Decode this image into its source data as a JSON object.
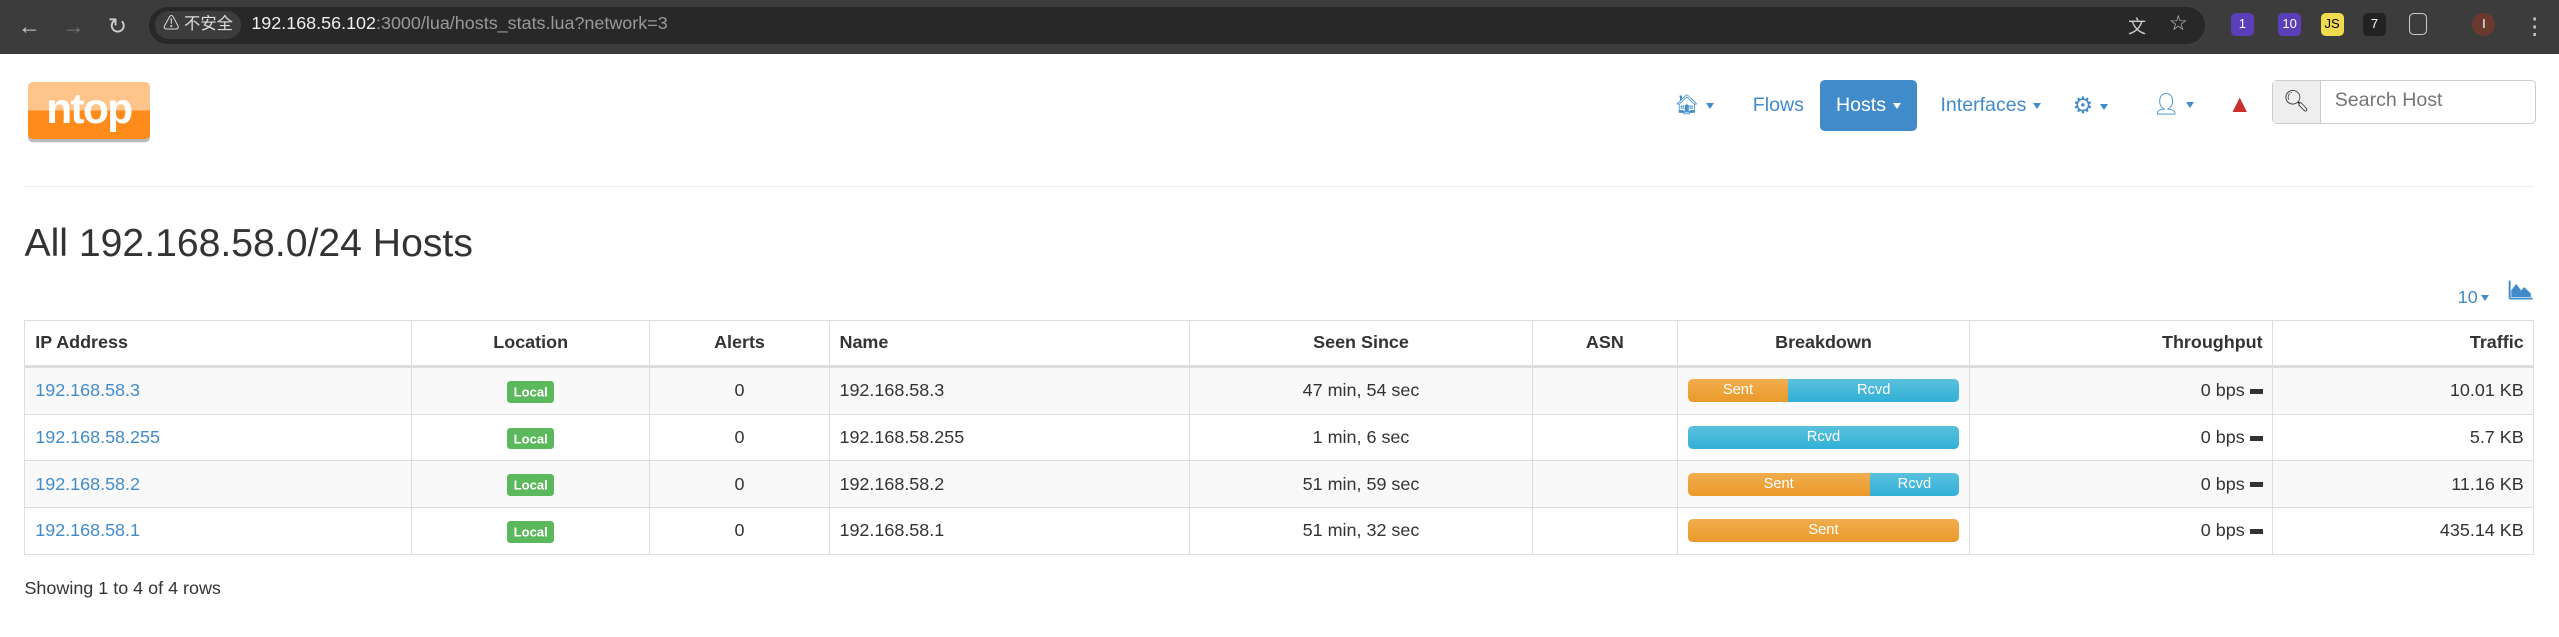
{
  "browser": {
    "security_label": "不安全",
    "url_host": "192.168.56.102",
    "url_rest": ":3000/lua/hosts_stats.lua?network=3",
    "ext_badges": [
      "1",
      "10",
      "JS",
      "7"
    ],
    "profile_initial": "I"
  },
  "logo": "ntop",
  "nav": {
    "flows": "Flows",
    "hosts": "Hosts",
    "interfaces": "Interfaces",
    "search_placeholder": "Search Host",
    "active": "Hosts"
  },
  "page": {
    "title": "All 192.168.58.0/24 Hosts",
    "per_page": "10",
    "footer": "Showing 1 to 4 of 4 rows"
  },
  "table": {
    "headers": [
      "IP Address",
      "Location",
      "Alerts",
      "Name",
      "Seen Since",
      "ASN",
      "Breakdown",
      "Throughput",
      "Traffic"
    ],
    "rows": [
      {
        "ip": "192.168.58.3",
        "location": "Local",
        "alerts": "0",
        "name": "192.168.58.3",
        "seen": "47 min, 54 sec",
        "asn": "",
        "sent_pct": 37,
        "sent": "Sent",
        "rcvd": "Rcvd",
        "throughput": "0 bps",
        "traffic": "10.01 KB"
      },
      {
        "ip": "192.168.58.255",
        "location": "Local",
        "alerts": "0",
        "name": "192.168.58.255",
        "seen": "1 min, 6 sec",
        "asn": "",
        "sent_pct": 0,
        "sent": "",
        "rcvd": "Rcvd",
        "throughput": "0 bps",
        "traffic": "5.7 KB"
      },
      {
        "ip": "192.168.58.2",
        "location": "Local",
        "alerts": "0",
        "name": "192.168.58.2",
        "seen": "51 min, 59 sec",
        "asn": "",
        "sent_pct": 67,
        "sent": "Sent",
        "rcvd": "Rcvd",
        "throughput": "0 bps",
        "traffic": "11.16 KB"
      },
      {
        "ip": "192.168.58.1",
        "location": "Local",
        "alerts": "0",
        "name": "192.168.58.1",
        "seen": "51 min, 32 sec",
        "asn": "",
        "sent_pct": 100,
        "sent": "Sent",
        "rcvd": "",
        "throughput": "0 bps",
        "traffic": "435.14 KB"
      }
    ]
  },
  "colors": {
    "accent": "#428bca",
    "sent": "#f0ad4e",
    "rcvd": "#5bc0de",
    "local": "#5cb85c",
    "alert": "#c9302c"
  }
}
